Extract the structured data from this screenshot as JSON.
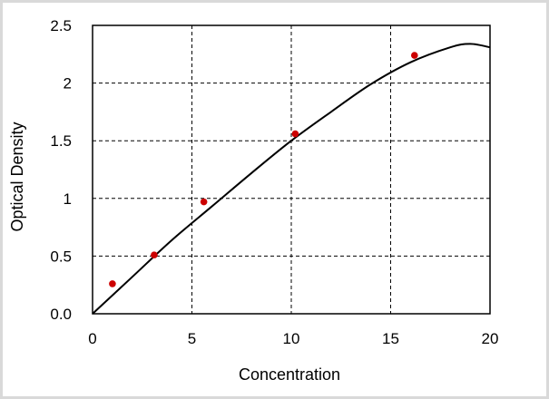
{
  "chart_data": {
    "type": "scatter",
    "title": "",
    "xlabel": "Concentration",
    "ylabel": "Optical Density",
    "xlim": [
      0,
      20
    ],
    "ylim": [
      0,
      2.5
    ],
    "x_ticks": [
      "0",
      "5",
      "10",
      "15",
      "20"
    ],
    "y_ticks": [
      "0.0",
      "0.5",
      "1",
      "1.5",
      "2",
      "2.5"
    ],
    "x_tick_values": [
      0,
      5,
      10,
      15,
      20
    ],
    "y_tick_values": [
      0,
      0.5,
      1,
      1.5,
      2,
      2.5
    ],
    "grid": "dashed",
    "points": {
      "x": [
        1.0,
        3.1,
        5.6,
        10.2,
        16.2
      ],
      "y": [
        0.26,
        0.51,
        0.97,
        1.56,
        2.24
      ]
    },
    "fit_curve": {
      "x": [
        0,
        2,
        4,
        6,
        8,
        10,
        12,
        14,
        16,
        18,
        19,
        20
      ],
      "y": [
        0.0,
        0.32,
        0.64,
        0.93,
        1.22,
        1.5,
        1.75,
        1.99,
        2.18,
        2.31,
        2.34,
        2.31
      ]
    },
    "point_color": "#cc0000",
    "curve_color": "#000000",
    "legend": "none"
  }
}
